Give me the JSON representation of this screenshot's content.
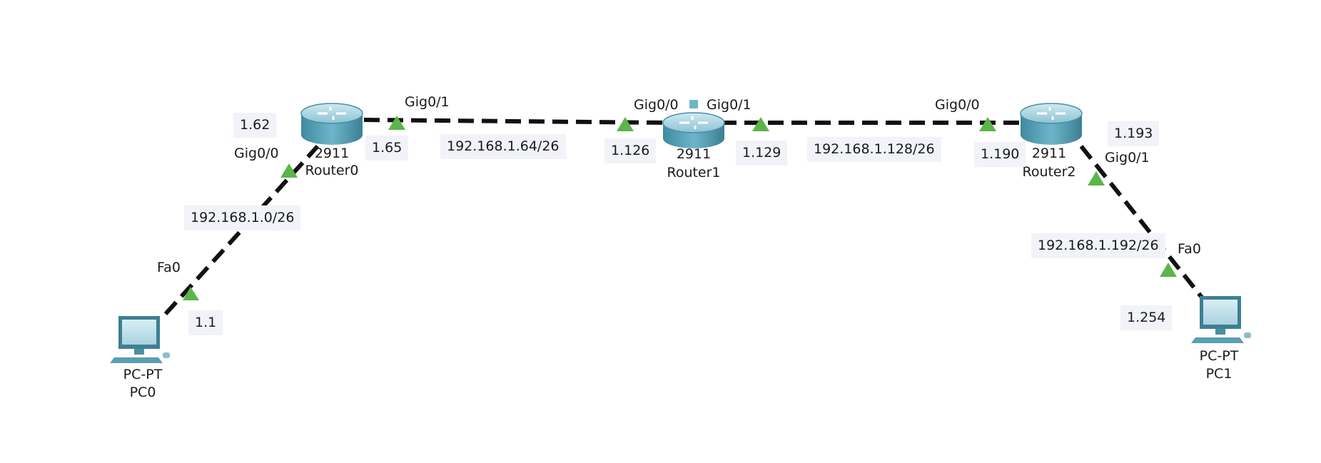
{
  "devices": {
    "router0": {
      "model": "2911",
      "name": "Router0"
    },
    "router1": {
      "model": "2911",
      "name": "Router1"
    },
    "router2": {
      "model": "2911",
      "name": "Router2"
    },
    "pc0": {
      "model": "PC-PT",
      "name": "PC0"
    },
    "pc1": {
      "model": "PC-PT",
      "name": "PC1"
    }
  },
  "ports": {
    "pc0_fa0": "Fa0",
    "r0_gig00": "Gig0/0",
    "r0_gig01": "Gig0/1",
    "r1_gig00": "Gig0/0",
    "r1_gig01": "Gig0/1",
    "r2_gig00": "Gig0/0",
    "r2_gig01": "Gig0/1",
    "pc1_fa0": "Fa0"
  },
  "networks": {
    "net_0": "192.168.1.0/26",
    "net_64": "192.168.1.64/26",
    "net_128": "192.168.1.128/26",
    "net_192": "192.168.1.192/26"
  },
  "addresses": {
    "pc0": "1.1",
    "r0_gig00": "1.62",
    "r0_gig01": "1.65",
    "r1_gig00": "1.126",
    "r1_gig01": "1.129",
    "r2_gig00": "1.190",
    "r2_gig01": "1.193",
    "pc1": "1.254"
  },
  "colors": {
    "link": "#111111",
    "port_up": "#5bb54a",
    "router_body": "#4f9db3",
    "pc_body": "#5a9fb3",
    "label_bg": "#f1f3f9"
  }
}
